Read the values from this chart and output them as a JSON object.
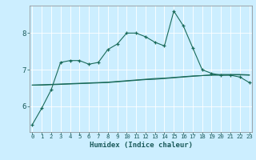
{
  "xlabel": "Humidex (Indice chaleur)",
  "background_color": "#cceeff",
  "grid_color": "#ffffff",
  "line_color": "#1a6b5a",
  "x_ticks": [
    0,
    1,
    2,
    3,
    4,
    5,
    6,
    7,
    8,
    9,
    10,
    11,
    12,
    13,
    14,
    15,
    16,
    17,
    18,
    19,
    20,
    21,
    22,
    23
  ],
  "y_ticks": [
    6,
    7,
    8
  ],
  "ylim": [
    5.3,
    8.75
  ],
  "xlim": [
    -0.3,
    23.3
  ],
  "line1_y": [
    5.5,
    5.95,
    6.45,
    7.2,
    7.25,
    7.25,
    7.15,
    7.2,
    7.55,
    7.7,
    8.0,
    8.0,
    7.9,
    7.75,
    7.65,
    8.6,
    8.2,
    7.6,
    7.0,
    6.9,
    6.85,
    6.85,
    6.8,
    6.65
  ],
  "line2_y": [
    6.58,
    6.58,
    6.59,
    6.6,
    6.61,
    6.62,
    6.63,
    6.64,
    6.65,
    6.67,
    6.69,
    6.71,
    6.73,
    6.74,
    6.76,
    6.78,
    6.8,
    6.82,
    6.84,
    6.86,
    6.87,
    6.87,
    6.87,
    6.86
  ],
  "line3_y": [
    6.58,
    6.59,
    6.6,
    6.61,
    6.62,
    6.63,
    6.64,
    6.65,
    6.66,
    6.68,
    6.7,
    6.72,
    6.74,
    6.76,
    6.77,
    6.79,
    6.81,
    6.83,
    6.84,
    6.85,
    6.85,
    6.86,
    6.86,
    6.85
  ]
}
